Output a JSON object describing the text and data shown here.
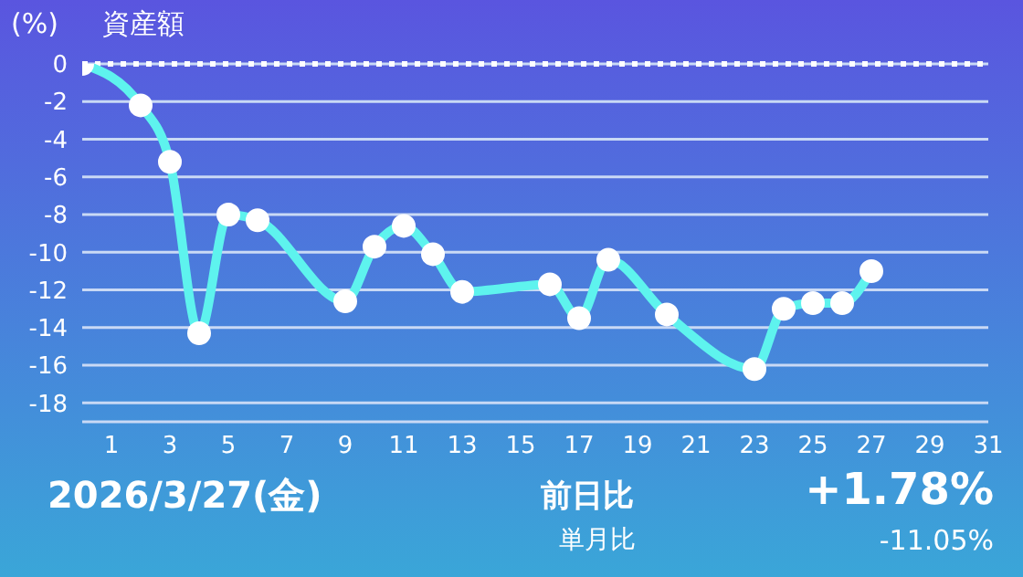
{
  "chart_data": {
    "type": "line",
    "title": "資産額",
    "ylabel": "(%)",
    "x": [
      0,
      2,
      3,
      4,
      5,
      6,
      9,
      10,
      11,
      12,
      13,
      16,
      17,
      18,
      20,
      23,
      24,
      25,
      26,
      27
    ],
    "series": [
      {
        "color": "#5ef3ee",
        "values": [
          0,
          -2.2,
          -5.2,
          -14.3,
          -8.0,
          -8.3,
          -12.6,
          -9.7,
          -8.6,
          -10.1,
          -12.1,
          -11.7,
          -13.5,
          -10.4,
          -13.3,
          -16.2,
          -13.0,
          -12.7,
          -12.7,
          -11.0
        ]
      }
    ],
    "xlim": [
      0,
      31
    ],
    "xticks": [
      1,
      3,
      5,
      7,
      9,
      11,
      13,
      15,
      17,
      19,
      21,
      23,
      25,
      27,
      29,
      31
    ],
    "ylim": [
      -19,
      0
    ],
    "yticks": [
      0,
      -2,
      -4,
      -6,
      -8,
      -10,
      -12,
      -14,
      -16,
      -18
    ],
    "grid": "y",
    "marker": "circle",
    "line_style": "solid",
    "ref_lines": [
      {
        "axis": "y",
        "value": 0,
        "label": null,
        "color": "#ffffff",
        "line_style": "dotted"
      }
    ],
    "annotations": [
      "2026/3/27(金)",
      "前日比",
      "+1.78%",
      "単月比",
      "-11.05%"
    ]
  }
}
